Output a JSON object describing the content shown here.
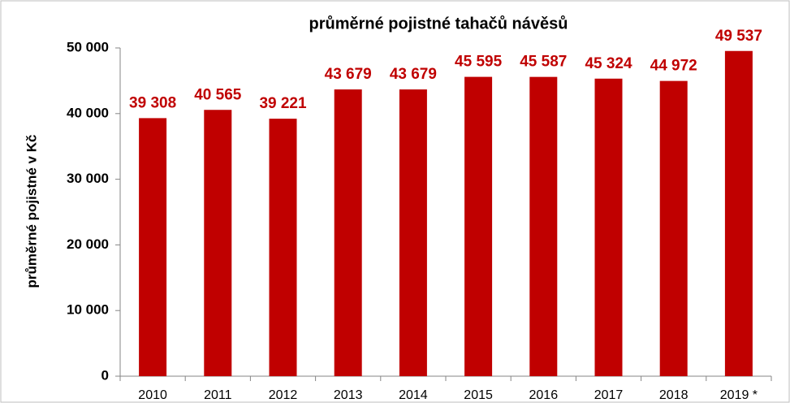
{
  "chart_data": {
    "type": "bar",
    "title": "průměrné pojistné tahačů návěsů",
    "y_label": "průměrné pojistné v Kč",
    "categories": [
      "2010",
      "2011",
      "2012",
      "2013",
      "2014",
      "2015",
      "2016",
      "2017",
      "2018",
      "2019 *"
    ],
    "values": [
      39308,
      40565,
      39221,
      43679,
      43679,
      45595,
      45587,
      45324,
      44972,
      49537
    ],
    "value_labels": [
      "39 308",
      "40 565",
      "39 221",
      "43 679",
      "43 679",
      "45 595",
      "45 587",
      "45 324",
      "44 972",
      "49 537"
    ],
    "color": "#c00000",
    "ylim": [
      0,
      50000
    ],
    "yticks": [
      0,
      {
        "value": 10000,
        "label": "10 000"
      },
      {
        "value": 20000,
        "label": "20 000"
      },
      {
        "value": 30000,
        "label": "30 000"
      },
      {
        "value": 40000,
        "label": "40 000"
      },
      {
        "value": 50000,
        "label": "50 000"
      }
    ],
    "grid": false
  }
}
